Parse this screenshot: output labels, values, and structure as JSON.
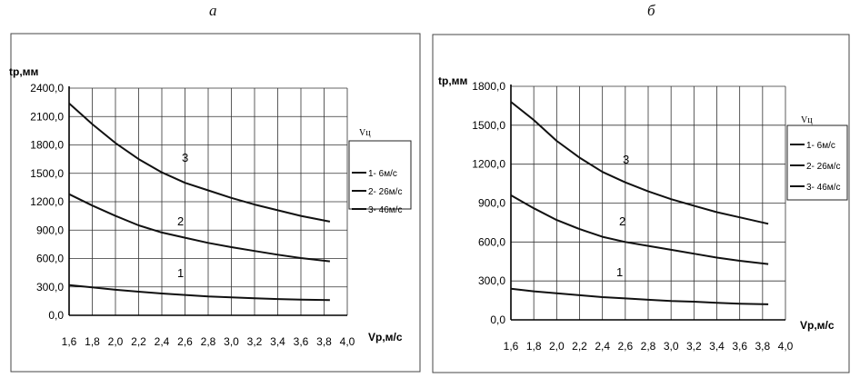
{
  "panels": [
    {
      "letter": "а",
      "ylabel": "tp,мм",
      "xlabel": "Vp,м/с",
      "legend_title": "Vц",
      "chart_data": {
        "type": "line",
        "x": [
          1.6,
          1.8,
          2.0,
          2.2,
          2.4,
          2.6,
          2.8,
          3.0,
          3.2,
          3.4,
          3.6,
          3.85
        ],
        "xticks": [
          "1,6",
          "1,8",
          "2,0",
          "2,2",
          "2,4",
          "2,6",
          "2,8",
          "3,0",
          "3,2",
          "3,4",
          "3,6",
          "3,8",
          "4,0"
        ],
        "yticks": [
          "0,0",
          "300,0",
          "600,0",
          "900,0",
          "1200,0",
          "1500,0",
          "1800,0",
          "2100,0",
          "2400,0"
        ],
        "xlim": [
          1.6,
          4.0
        ],
        "ylim": [
          0,
          2400
        ],
        "series": [
          {
            "name": "1- 6м/с",
            "label": "1",
            "values": [
              320,
              295,
              270,
              250,
              230,
              215,
              200,
              190,
              180,
              172,
              166,
              160
            ]
          },
          {
            "name": "2- 26м/с",
            "label": "2",
            "values": [
              1280,
              1160,
              1050,
              950,
              875,
              820,
              765,
              720,
              680,
              640,
              605,
              570
            ]
          },
          {
            "name": "3- 46м/с",
            "label": "3",
            "values": [
              2240,
              2020,
              1820,
              1650,
              1510,
              1400,
              1320,
              1240,
              1170,
              1110,
              1050,
              990
            ]
          }
        ],
        "grid": true,
        "legend": "right"
      }
    },
    {
      "letter": "б",
      "ylabel": "tp,мм",
      "xlabel": "Vp,м/с",
      "legend_title": "Vц",
      "chart_data": {
        "type": "line",
        "x": [
          1.6,
          1.8,
          2.0,
          2.2,
          2.4,
          2.6,
          2.8,
          3.0,
          3.2,
          3.4,
          3.6,
          3.85
        ],
        "xticks": [
          "1,6",
          "1,8",
          "2,0",
          "2,2",
          "2,4",
          "2,6",
          "2,8",
          "3,0",
          "3,2",
          "3,4",
          "3,6",
          "3,8",
          "4,0"
        ],
        "yticks": [
          "0,0",
          "300,0",
          "600,0",
          "900,0",
          "1200,0",
          "1500,0",
          "1800,0"
        ],
        "xlim": [
          1.6,
          4.0
        ],
        "ylim": [
          0,
          1800
        ],
        "series": [
          {
            "name": "1- 6м/с",
            "label": "1",
            "values": [
              240,
              220,
              205,
              190,
              175,
              165,
              155,
              145,
              140,
              132,
              125,
              120
            ]
          },
          {
            "name": "2- 26м/с",
            "label": "2",
            "values": [
              960,
              860,
              770,
              700,
              640,
              600,
              570,
              540,
              510,
              480,
              455,
              430
            ]
          },
          {
            "name": "3- 46м/с",
            "label": "3",
            "values": [
              1680,
              1540,
              1380,
              1250,
              1140,
              1060,
              990,
              930,
              880,
              830,
              790,
              740
            ]
          }
        ],
        "grid": true,
        "legend": "right"
      }
    }
  ]
}
